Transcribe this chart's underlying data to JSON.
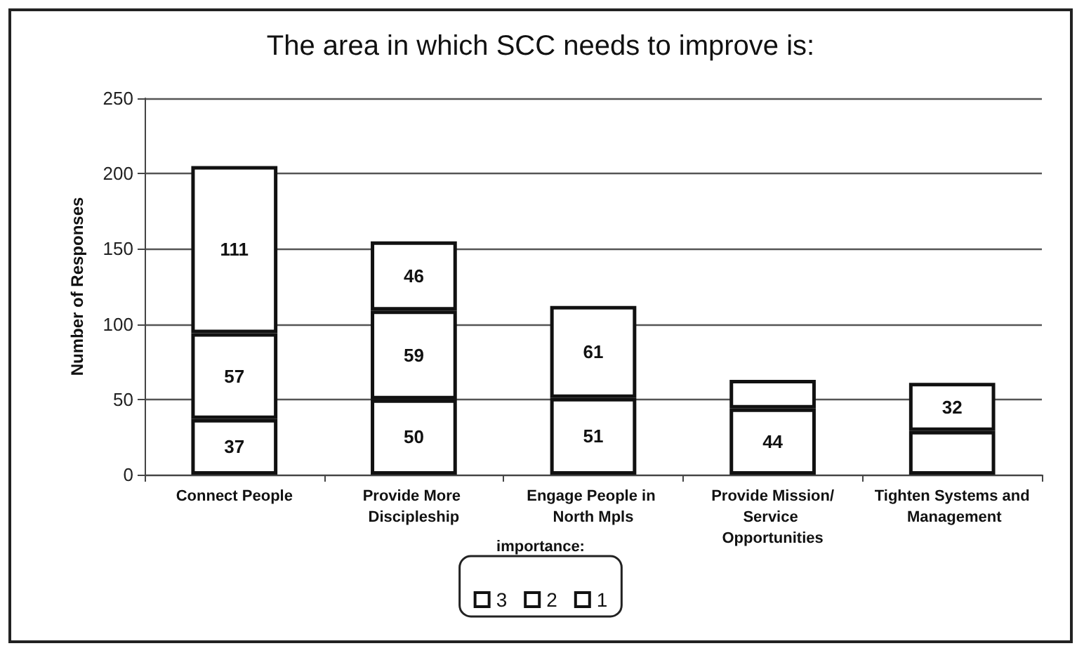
{
  "chart_data": {
    "type": "bar",
    "title": "The area in which SCC needs to improve is:",
    "ylabel": "Number of Responses",
    "categories": [
      "Connect People",
      "Provide More Discipleship",
      "Engage People in North Mpls",
      "Provide Mission/Service Opportunities",
      "Tighten Systems and Management"
    ],
    "stacked": true,
    "series": [
      {
        "name": "3",
        "color": "#ffffff",
        "values": [
          37,
          50,
          51,
          44,
          29
        ],
        "value_labels": [
          "37",
          "50",
          "51",
          "44",
          null
        ]
      },
      {
        "name": "2",
        "color": "#ffffff",
        "values": [
          57,
          59,
          61,
          19,
          32
        ],
        "value_labels": [
          "57",
          "59",
          "61",
          null,
          "32"
        ]
      },
      {
        "name": "1",
        "color": "#ffffff",
        "values": [
          111,
          46,
          null,
          null,
          null
        ],
        "value_labels": [
          "111",
          "46",
          null,
          null,
          null
        ]
      }
    ],
    "ylim": [
      0,
      250
    ],
    "yticks": [
      0,
      50,
      100,
      150,
      200,
      250
    ],
    "grid": "y",
    "legend": "bottom",
    "legend_title": "importance:"
  }
}
